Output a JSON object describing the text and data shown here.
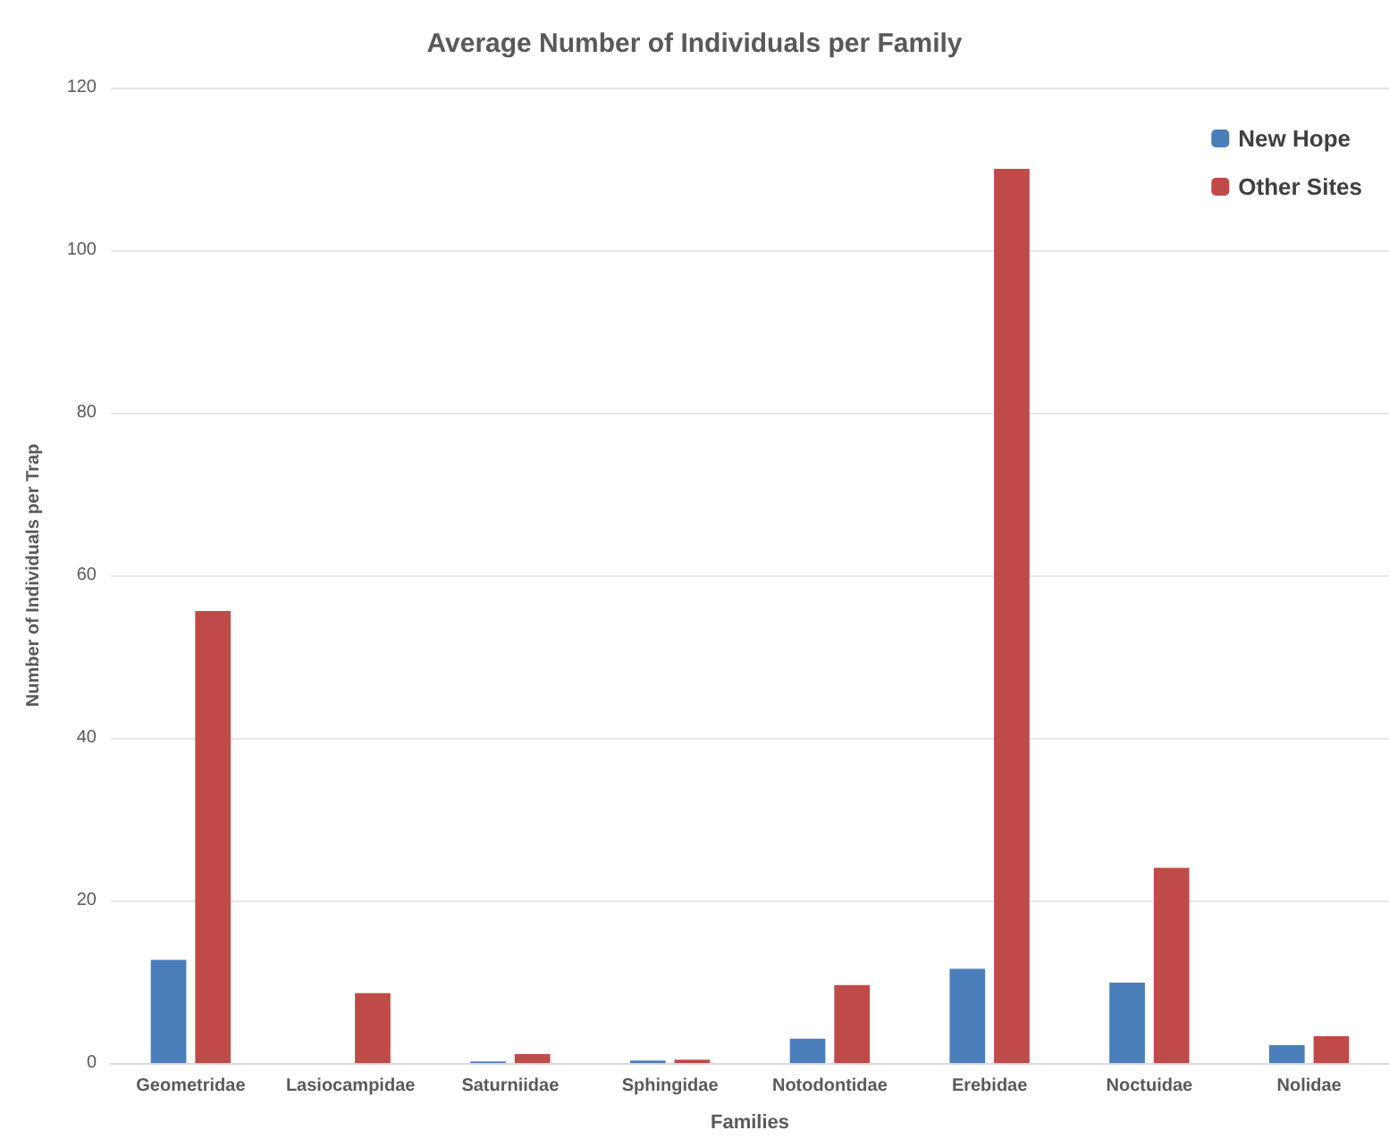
{
  "chart_data": {
    "type": "bar",
    "title": "Average Number of Individuals per Family",
    "xlabel": "Families",
    "ylabel": "Number of Individuals per Trap",
    "categories": [
      "Geometridae",
      "Lasiocampidae",
      "Saturniidae",
      "Sphingidae",
      "Notodontidae",
      "Erebidae",
      "Noctuidae",
      "Nolidae"
    ],
    "series": [
      {
        "name": "New Hope",
        "color": "#4a7ebb",
        "values": [
          12.7,
          0,
          0.2,
          0.3,
          3.0,
          11.6,
          9.9,
          2.2
        ]
      },
      {
        "name": "Other Sites",
        "color": "#be4b48",
        "values": [
          55.6,
          8.6,
          1.1,
          0.4,
          9.6,
          110,
          24.0,
          3.3
        ]
      }
    ],
    "ylim": [
      0,
      120
    ],
    "yticks": [
      0,
      20,
      40,
      60,
      80,
      100,
      120
    ],
    "grid": "y",
    "legend": "top right"
  }
}
